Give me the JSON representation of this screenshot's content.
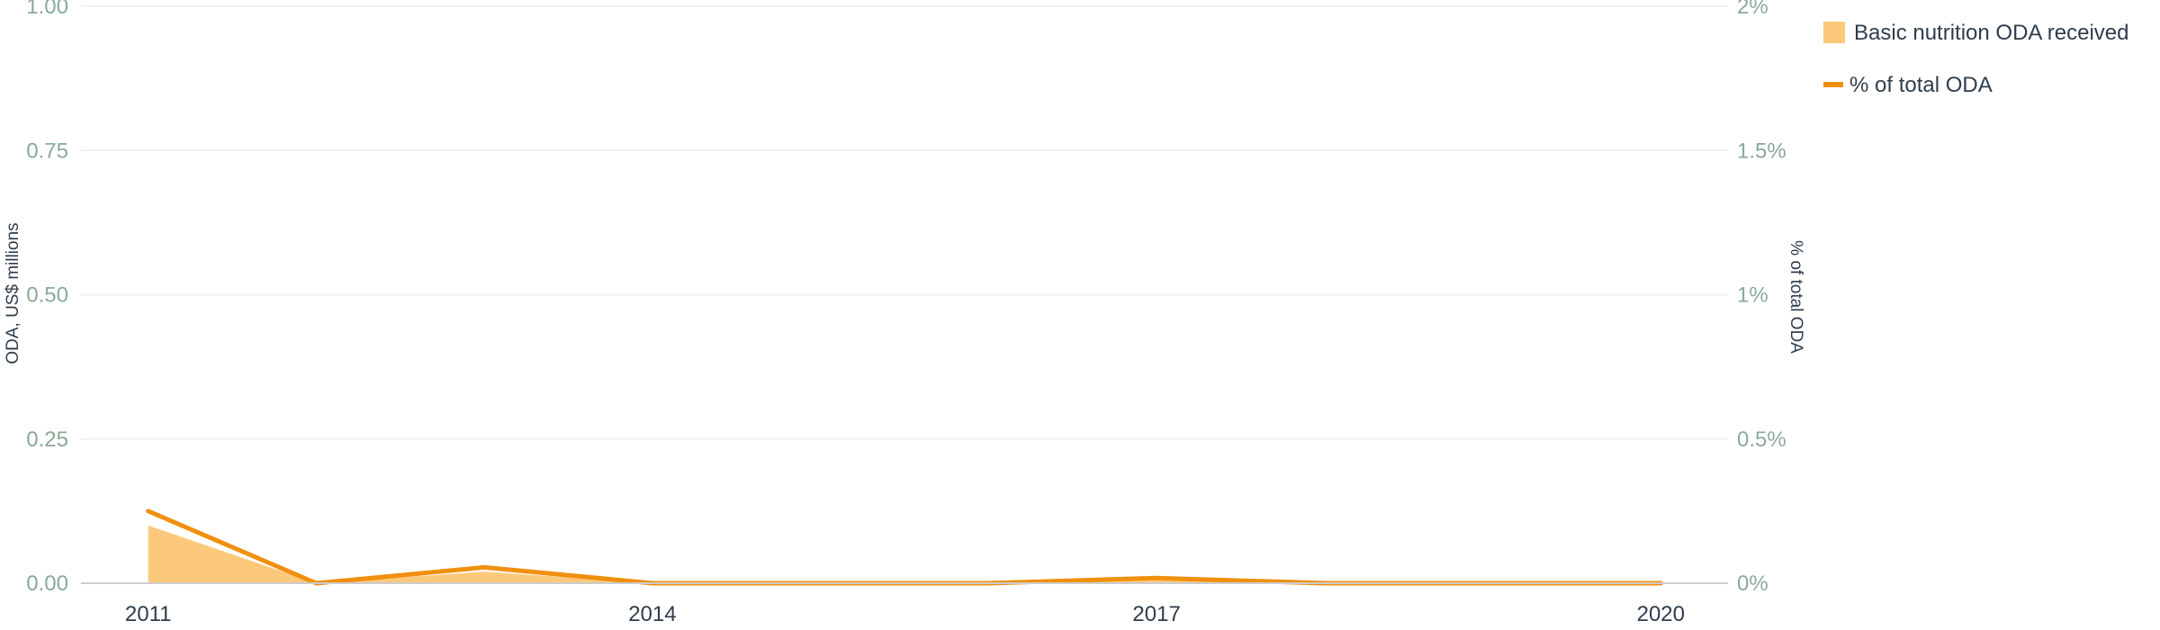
{
  "chart_data": {
    "type": "area",
    "x": [
      2011,
      2012,
      2013,
      2014,
      2015,
      2016,
      2017,
      2018,
      2019,
      2020
    ],
    "x_ticks": [
      "2011",
      "2014",
      "2017",
      "2020"
    ],
    "series": [
      {
        "name": "Basic nutrition ODA received",
        "type": "area",
        "axis": "left",
        "values": [
          0.1,
          0.0,
          0.02,
          0.0,
          0.0,
          0.0,
          0.005,
          0.0,
          0.0,
          0.0
        ],
        "color": "#fcc97c"
      },
      {
        "name": "% of total ODA",
        "type": "line",
        "axis": "right",
        "values": [
          0.25,
          0.0,
          0.055,
          0.0,
          0.0,
          0.0,
          0.018,
          0.0,
          0.0,
          0.0
        ],
        "color": "#f0900f"
      }
    ],
    "ylabel": "ODA, US$ millions",
    "ylabel_right": "% of total ODA",
    "ylim": [
      0,
      1
    ],
    "ylim_right": [
      0,
      2
    ],
    "y_ticks": [
      "0.00",
      "0.25",
      "0.50",
      "0.75",
      "1.00"
    ],
    "y_ticks_right": [
      "0%",
      "0.5%",
      "1%",
      "1.5%",
      "2%"
    ],
    "grid": true,
    "legend_position": "top-right"
  },
  "colors": {
    "grid": "#eeeeee",
    "axis_line": "#cccccc",
    "left_tick": "#8aaa98",
    "right_tick": "#8aaa98",
    "text": "#2f3d4b"
  }
}
